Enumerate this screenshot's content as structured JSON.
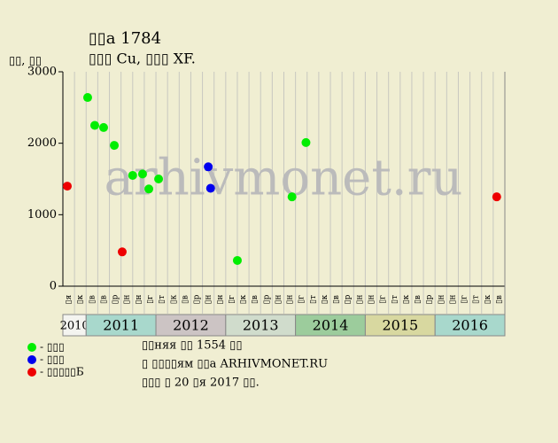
{
  "chart_data": {
    "type": "scatter",
    "title": "▯▯a 1784",
    "subtitle": "▯▯▯ Cu, ▯▯▯ XF.",
    "y_label": "▯▯, ▯▯",
    "watermark": "arhivmonet.ru",
    "ylim": [
      0,
      3000
    ],
    "yticks": [
      0,
      1000,
      2000,
      3000
    ],
    "xlim": [
      0,
      38
    ],
    "categories": [
      "▯я",
      "▯к",
      "▯в",
      "▯в",
      "▯р",
      "▯н",
      "▯н",
      "▯г",
      "▯т",
      "▯к",
      "▯в",
      "▯р",
      "▯н",
      "▯н",
      "▯г",
      "▯к",
      "▯в",
      "▯р",
      "▯н",
      "▯н",
      "▯г",
      "▯т",
      "▯к",
      "▯в",
      "▯р",
      "▯н",
      "▯н",
      "▯г",
      "▯т",
      "▯к",
      "▯в",
      "▯р",
      "▯н",
      "▯н",
      "▯г",
      "▯т",
      "▯к",
      "▯в"
    ],
    "years": [
      {
        "label": "2010",
        "color": "#f4f4f0"
      },
      {
        "label": "2011",
        "color": "#a8d8cc"
      },
      {
        "label": "2012",
        "color": "#ccc4c4"
      },
      {
        "label": "2013",
        "color": "#d0dccc"
      },
      {
        "label": "2014",
        "color": "#9ccc9c"
      },
      {
        "label": "2015",
        "color": "#d8d8a0"
      },
      {
        "label": "2016",
        "color": "#a8d8cc"
      }
    ],
    "series": [
      {
        "name": "- ▯▯▯",
        "color": "#00ee00",
        "x": [
          2.13,
          2.74,
          3.5,
          4.42,
          6.0,
          6.85,
          7.39,
          8.23,
          15.0,
          19.7,
          20.9
        ],
        "values": [
          2640,
          2250,
          2220,
          1970,
          1550,
          1570,
          1360,
          1500,
          360,
          1250,
          2010
        ]
      },
      {
        "name": "- ▯▯▯",
        "color": "#0000ee",
        "x": [
          12.5,
          12.7
        ],
        "values": [
          1670,
          1370
        ]
      },
      {
        "name": "- ▯▯▯▯▯Б",
        "color": "#ee0000",
        "x": [
          0.38,
          5.1,
          37.3
        ],
        "values": [
          1400,
          480,
          1250
        ]
      }
    ],
    "notes": [
      "▯▯няя ▯▯ 1554 ▯▯",
      "▯ ▯▯▯▯ям ▯▯а ARHIVMONET.RU",
      "▯▯▯ ▯ 20 ▯я 2017 ▯▯."
    ]
  }
}
